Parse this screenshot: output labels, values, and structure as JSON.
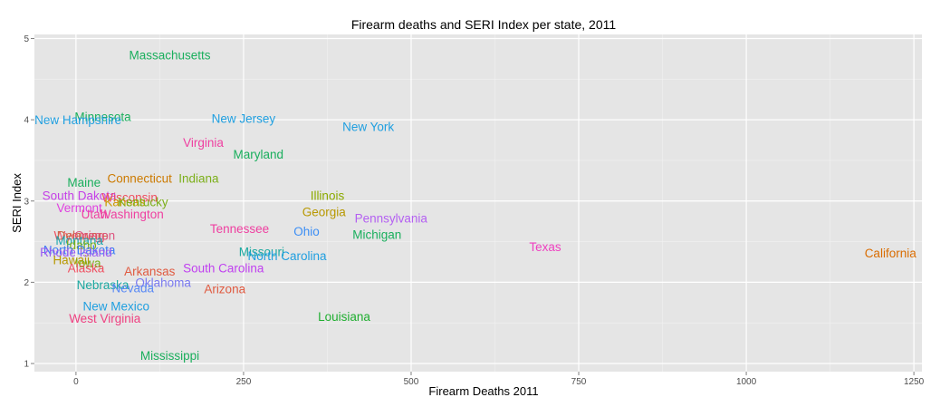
{
  "chart_data": {
    "type": "scatter",
    "title": "Firearm deaths and SERI Index per state, 2011",
    "xlabel": "Firearm Deaths 2011",
    "ylabel": "SERI Index",
    "xlim": [
      -62,
      1262
    ],
    "ylim": [
      0.9,
      5.05
    ],
    "xticks": [
      0,
      250,
      500,
      750,
      1000,
      1250
    ],
    "yticks": [
      1,
      2,
      3,
      4,
      5
    ],
    "grid": true,
    "legend": "none",
    "points": [
      {
        "label": "Massachusetts",
        "x": 140,
        "y": 4.8,
        "color": "#1aaf5d"
      },
      {
        "label": "Minnesota",
        "x": 40,
        "y": 4.04,
        "color": "#1aaf5d"
      },
      {
        "label": "New Hampshire",
        "x": 3,
        "y": 4.0,
        "color": "#1f9fe0"
      },
      {
        "label": "New Jersey",
        "x": 250,
        "y": 4.02,
        "color": "#1f9fe0"
      },
      {
        "label": "New York",
        "x": 436,
        "y": 3.92,
        "color": "#1f9fe0"
      },
      {
        "label": "Virginia",
        "x": 190,
        "y": 3.72,
        "color": "#ef3fa0"
      },
      {
        "label": "Maryland",
        "x": 272,
        "y": 3.58,
        "color": "#1aaf5d"
      },
      {
        "label": "Connecticut",
        "x": 95,
        "y": 3.28,
        "color": "#cc7a00"
      },
      {
        "label": "Indiana",
        "x": 183,
        "y": 3.28,
        "color": "#7caf1a"
      },
      {
        "label": "Maine",
        "x": 12,
        "y": 3.23,
        "color": "#1aaf5d"
      },
      {
        "label": "South Dakota",
        "x": 5,
        "y": 3.07,
        "color": "#c53fe8"
      },
      {
        "label": "Wisconsin",
        "x": 80,
        "y": 3.05,
        "color": "#ef4f60"
      },
      {
        "label": "Kansas",
        "x": 73,
        "y": 2.99,
        "color": "#cc9a00"
      },
      {
        "label": "Kentucky",
        "x": 100,
        "y": 2.99,
        "color": "#7caf1a"
      },
      {
        "label": "Illinois",
        "x": 375,
        "y": 3.07,
        "color": "#8caa00"
      },
      {
        "label": "Vermont",
        "x": 5,
        "y": 2.92,
        "color": "#e040e0"
      },
      {
        "label": "Utah",
        "x": 27,
        "y": 2.84,
        "color": "#ef3fa0"
      },
      {
        "label": "Washington",
        "x": 83,
        "y": 2.84,
        "color": "#ef3fa0"
      },
      {
        "label": "Georgia",
        "x": 370,
        "y": 2.87,
        "color": "#b89800"
      },
      {
        "label": "Pennsylvania",
        "x": 470,
        "y": 2.79,
        "color": "#b460f2"
      },
      {
        "label": "Tennessee",
        "x": 244,
        "y": 2.66,
        "color": "#ef3fa0"
      },
      {
        "label": "Ohio",
        "x": 344,
        "y": 2.63,
        "color": "#3b8ef5"
      },
      {
        "label": "Michigan",
        "x": 449,
        "y": 2.59,
        "color": "#1aaf5d"
      },
      {
        "label": "Wyoming",
        "x": 5,
        "y": 2.58,
        "color": "#ef4f60"
      },
      {
        "label": "Delaware",
        "x": 10,
        "y": 2.58,
        "color": "#cc6a4a"
      },
      {
        "label": "Oregon",
        "x": 28,
        "y": 2.58,
        "color": "#dd5580"
      },
      {
        "label": "Montana",
        "x": 5,
        "y": 2.52,
        "color": "#1aa8b0"
      },
      {
        "label": "Idaho",
        "x": 8,
        "y": 2.46,
        "color": "#7caf1a"
      },
      {
        "label": "North Dakota",
        "x": 5,
        "y": 2.4,
        "color": "#3b7cf5"
      },
      {
        "label": "Rhode Island",
        "x": 0,
        "y": 2.37,
        "color": "#9a5af2"
      },
      {
        "label": "Missouri",
        "x": 277,
        "y": 2.38,
        "color": "#1aa8a0"
      },
      {
        "label": "North Carolina",
        "x": 315,
        "y": 2.33,
        "color": "#1f9fe0"
      },
      {
        "label": "Texas",
        "x": 700,
        "y": 2.44,
        "color": "#ef3fc0"
      },
      {
        "label": "California",
        "x": 1215,
        "y": 2.36,
        "color": "#d96c00"
      },
      {
        "label": "Hawaii",
        "x": -7,
        "y": 2.28,
        "color": "#b89800"
      },
      {
        "label": "Iowa",
        "x": 18,
        "y": 2.24,
        "color": "#7caf1a"
      },
      {
        "label": "Alaska",
        "x": 15,
        "y": 2.18,
        "color": "#ef4f60"
      },
      {
        "label": "Arkansas",
        "x": 110,
        "y": 2.14,
        "color": "#e05a40"
      },
      {
        "label": "South Carolina",
        "x": 220,
        "y": 2.18,
        "color": "#c040f0"
      },
      {
        "label": "Oklahoma",
        "x": 130,
        "y": 2.0,
        "color": "#7a7af0"
      },
      {
        "label": "Nebraska",
        "x": 40,
        "y": 1.97,
        "color": "#1aa8a0"
      },
      {
        "label": "Nevada",
        "x": 85,
        "y": 1.93,
        "color": "#5a8af5"
      },
      {
        "label": "Arizona",
        "x": 222,
        "y": 1.92,
        "color": "#e05a40"
      },
      {
        "label": "New Mexico",
        "x": 60,
        "y": 1.71,
        "color": "#1f9fe0"
      },
      {
        "label": "West Virginia",
        "x": 43,
        "y": 1.56,
        "color": "#ef3f80"
      },
      {
        "label": "Louisiana",
        "x": 400,
        "y": 1.58,
        "color": "#1fae30"
      },
      {
        "label": "Mississippi",
        "x": 140,
        "y": 1.1,
        "color": "#1aaf5d"
      }
    ]
  }
}
